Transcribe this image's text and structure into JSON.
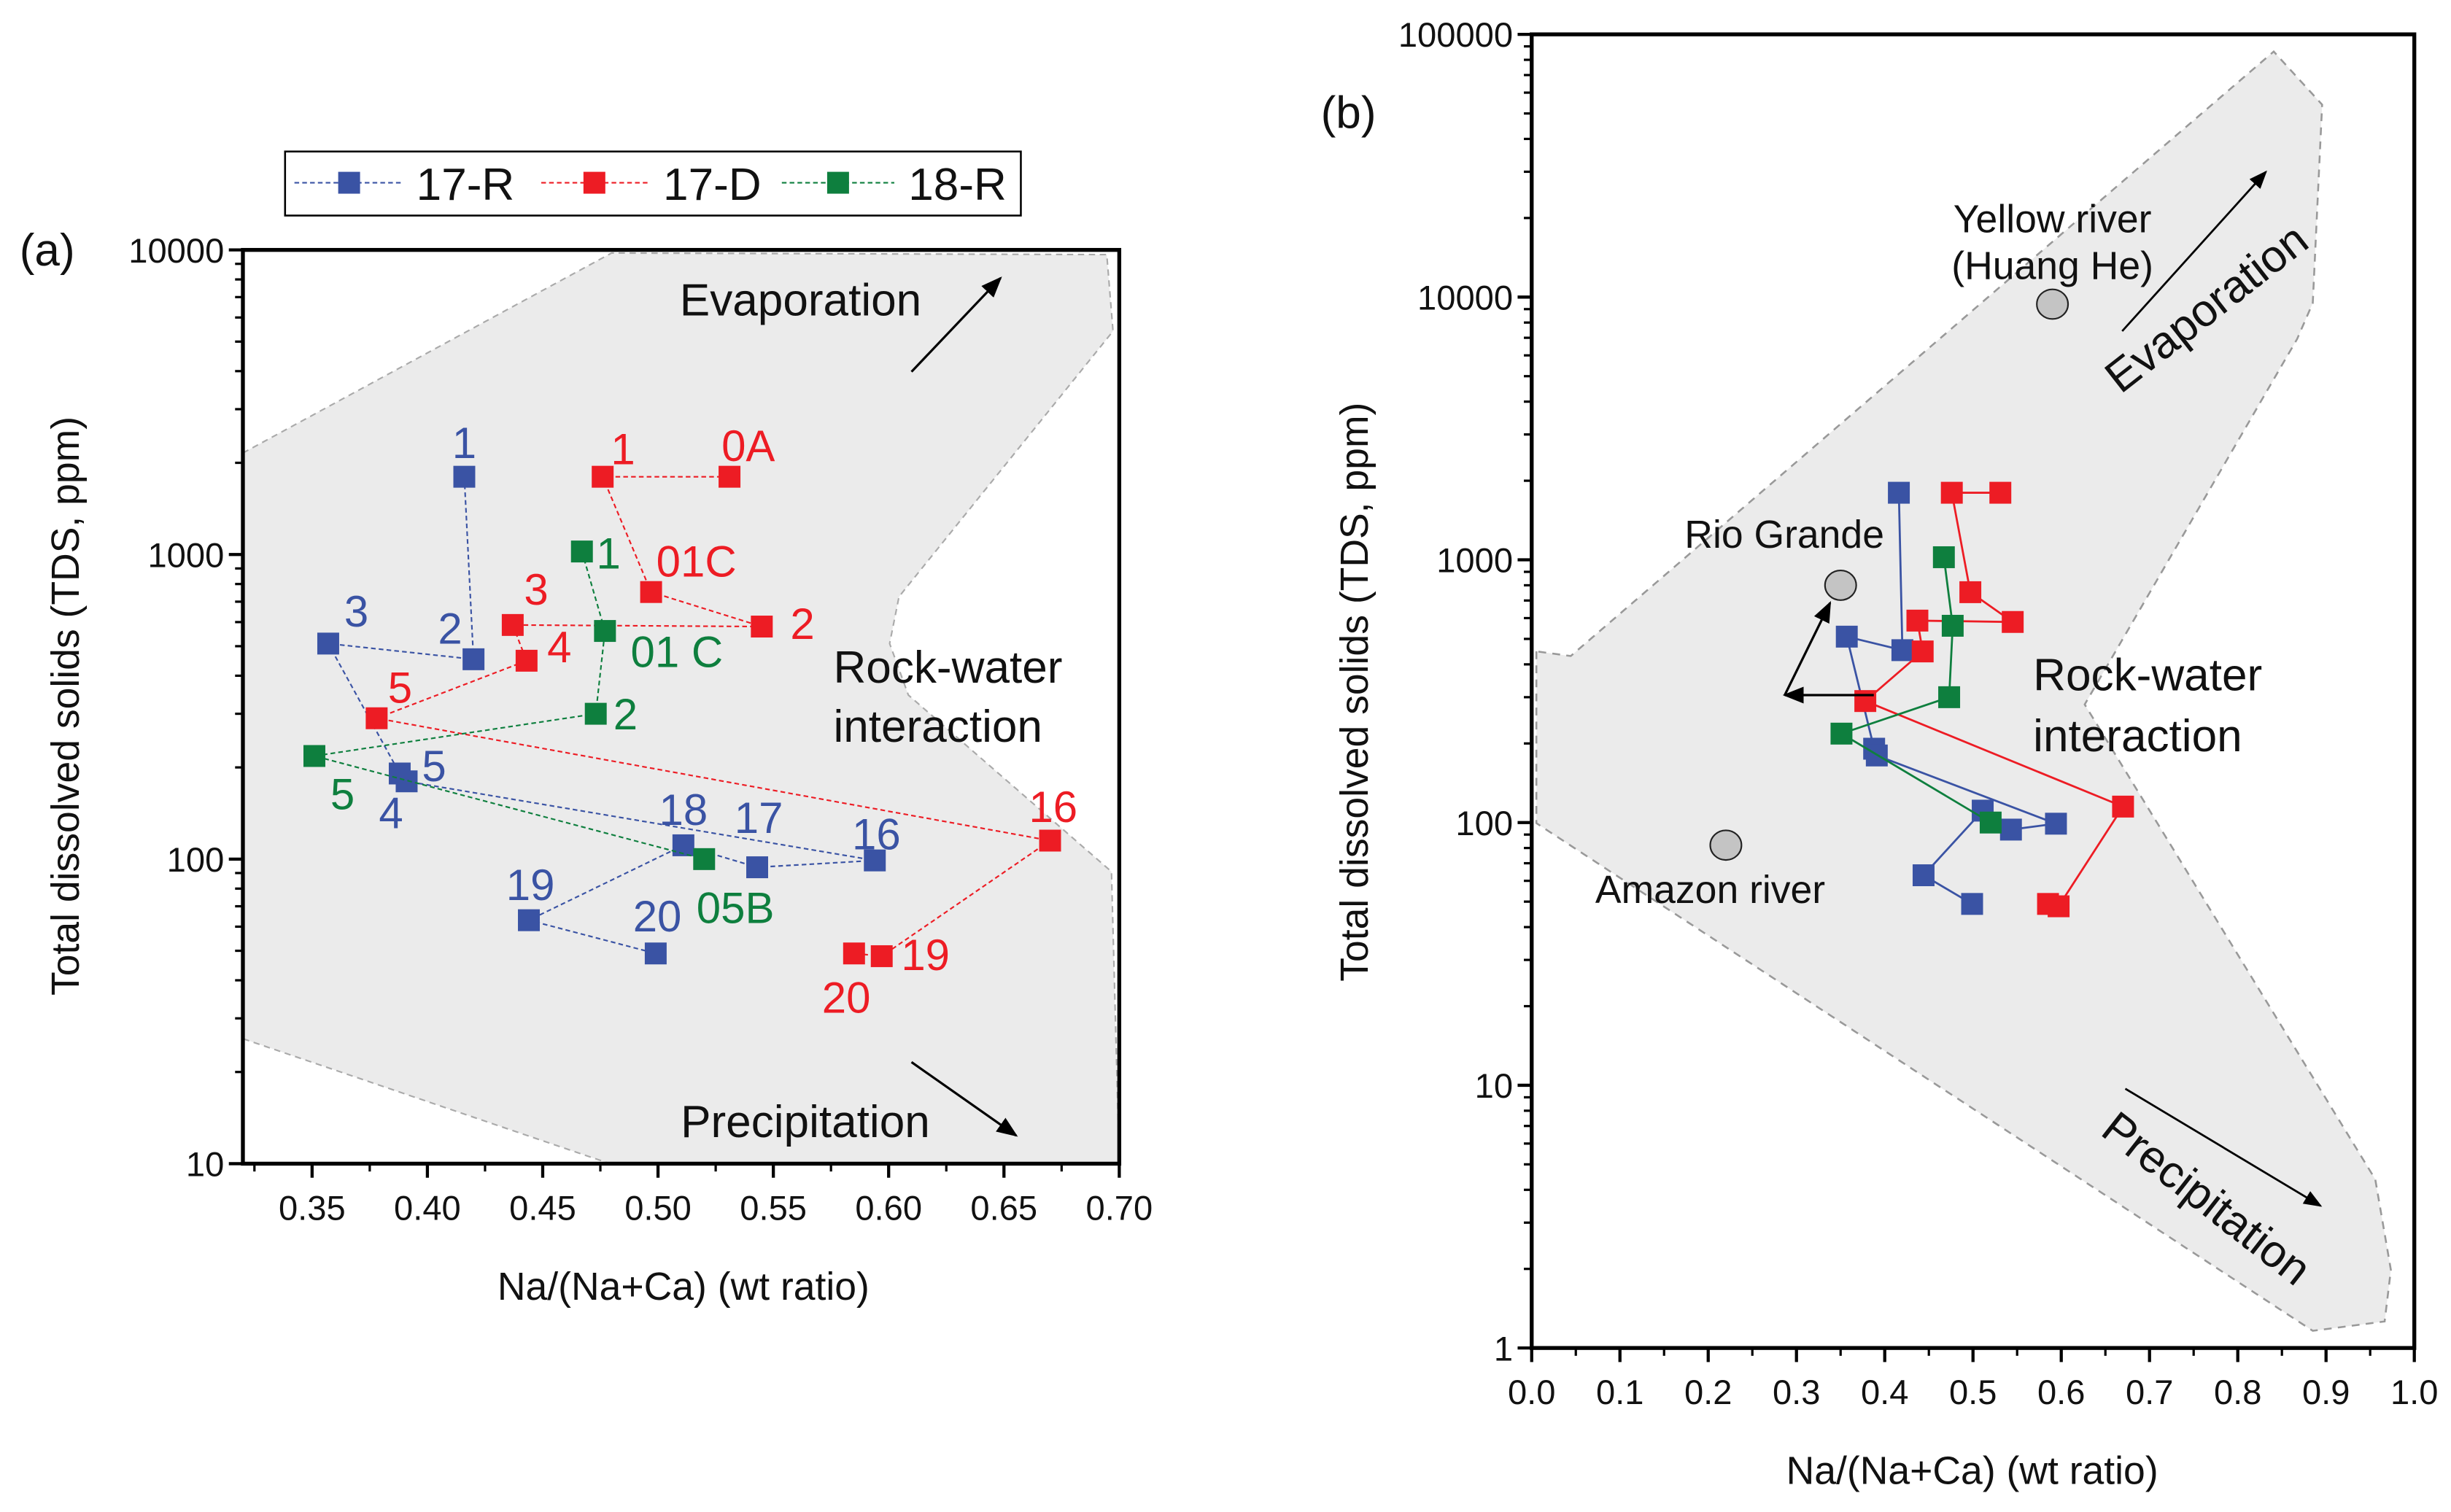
{
  "panels": {
    "a": "(a)",
    "b": "(b)"
  },
  "legend": [
    {
      "name": "17-R",
      "color": "#3a53a4"
    },
    {
      "name": "17-D",
      "color": "#ed1c24"
    },
    {
      "name": "18-R",
      "color": "#0e7f3e"
    }
  ],
  "chart_data": [
    {
      "type": "scatter",
      "panel": "(a)",
      "xlabel": "Na/(Na+Ca) (wt ratio)",
      "ylabel": "Total dissolved solids (TDS, ppm)",
      "xlim": [
        0.32,
        0.7
      ],
      "ylim": [
        10,
        10000
      ],
      "yscale": "log",
      "xticks": [
        "0.35",
        "0.40",
        "0.45",
        "0.50",
        "0.55",
        "0.60",
        "0.65",
        "0.70"
      ],
      "yticks": [
        "10",
        "100",
        "1000",
        "10000"
      ],
      "line_style": "dashed",
      "legend_position": "top",
      "annotations": {
        "evaporation": "Evaporation",
        "rock1": "Rock-water",
        "rock2": "interaction",
        "precipitation": "Precipitation"
      },
      "series": [
        {
          "name": "17-R",
          "color": "#3a53a4",
          "points": [
            {
              "x": 0.416,
              "y": 1800,
              "label": "1"
            },
            {
              "x": 0.42,
              "y": 453,
              "label": "2"
            },
            {
              "x": 0.357,
              "y": 510,
              "label": "3"
            },
            {
              "x": 0.388,
              "y": 191,
              "label": "5"
            },
            {
              "x": 0.391,
              "y": 180,
              "label": "4"
            },
            {
              "x": 0.594,
              "y": 99,
              "label": "16"
            },
            {
              "x": 0.543,
              "y": 94,
              "label": "17"
            },
            {
              "x": 0.511,
              "y": 111,
              "label": "18"
            },
            {
              "x": 0.444,
              "y": 63,
              "label": "19"
            },
            {
              "x": 0.499,
              "y": 49,
              "label": "20"
            }
          ]
        },
        {
          "name": "17-D",
          "color": "#ed1c24",
          "points": [
            {
              "x": 0.531,
              "y": 1800,
              "label": "0A"
            },
            {
              "x": 0.476,
              "y": 1800,
              "label": "1"
            },
            {
              "x": 0.497,
              "y": 753,
              "label": "01C"
            },
            {
              "x": 0.545,
              "y": 580,
              "label": "2"
            },
            {
              "x": 0.437,
              "y": 587,
              "label": "3"
            },
            {
              "x": 0.443,
              "y": 448,
              "label": "4"
            },
            {
              "x": 0.378,
              "y": 290,
              "label": "5"
            },
            {
              "x": 0.67,
              "y": 115,
              "label": "16"
            },
            {
              "x": 0.597,
              "y": 48,
              "label": "19"
            },
            {
              "x": 0.585,
              "y": 49,
              "label": "20"
            }
          ]
        },
        {
          "name": "18-R",
          "color": "#0e7f3e",
          "points": [
            {
              "x": 0.467,
              "y": 1023,
              "label": "1"
            },
            {
              "x": 0.477,
              "y": 561,
              "label": "01 C"
            },
            {
              "x": 0.473,
              "y": 300,
              "label": "2"
            },
            {
              "x": 0.351,
              "y": 218,
              "label": "5"
            },
            {
              "x": 0.52,
              "y": 100,
              "label": "05B"
            }
          ]
        }
      ]
    },
    {
      "type": "scatter",
      "panel": "(b)",
      "xlabel": "Na/(Na+Ca) (wt ratio)",
      "ylabel": "Total dissolved solids (TDS, ppm)",
      "xlim": [
        0.0,
        1.0
      ],
      "ylim": [
        1,
        100000
      ],
      "yscale": "log",
      "xticks": [
        "0.0",
        "0.1",
        "0.2",
        "0.3",
        "0.4",
        "0.5",
        "0.6",
        "0.7",
        "0.8",
        "0.9",
        "1.0"
      ],
      "yticks": [
        "1",
        "10",
        "100",
        "1000",
        "10000",
        "100000"
      ],
      "line_style": "solid",
      "annotations": {
        "evaporation": "Evaporation",
        "rock1": "Rock-water",
        "rock2": "interaction",
        "precipitation": "Precipitation"
      },
      "reference_points": [
        {
          "x": 0.59,
          "y": 9400,
          "label1": "Yellow river",
          "label2": "(Huang He)"
        },
        {
          "x": 0.35,
          "y": 800,
          "label1": "Rio Grande"
        },
        {
          "x": 0.22,
          "y": 82,
          "label1": "Amazon river"
        }
      ],
      "series": [
        {
          "color": "#3a53a4",
          "points": [
            {
              "x": 0.416,
              "y": 1800
            },
            {
              "x": 0.42,
              "y": 453
            },
            {
              "x": 0.357,
              "y": 510
            },
            {
              "x": 0.388,
              "y": 191
            },
            {
              "x": 0.391,
              "y": 180
            },
            {
              "x": 0.594,
              "y": 99
            },
            {
              "x": 0.543,
              "y": 94
            },
            {
              "x": 0.511,
              "y": 111
            },
            {
              "x": 0.444,
              "y": 63
            },
            {
              "x": 0.499,
              "y": 49
            }
          ]
        },
        {
          "color": "#ed1c24",
          "points": [
            {
              "x": 0.531,
              "y": 1800
            },
            {
              "x": 0.476,
              "y": 1800
            },
            {
              "x": 0.497,
              "y": 753
            },
            {
              "x": 0.545,
              "y": 580
            },
            {
              "x": 0.437,
              "y": 587
            },
            {
              "x": 0.443,
              "y": 448
            },
            {
              "x": 0.378,
              "y": 290
            },
            {
              "x": 0.67,
              "y": 115
            },
            {
              "x": 0.597,
              "y": 48
            },
            {
              "x": 0.585,
              "y": 49
            }
          ]
        },
        {
          "color": "#0e7f3e",
          "points": [
            {
              "x": 0.467,
              "y": 1023
            },
            {
              "x": 0.477,
              "y": 561
            },
            {
              "x": 0.473,
              "y": 300
            },
            {
              "x": 0.351,
              "y": 218
            },
            {
              "x": 0.52,
              "y": 100
            }
          ]
        }
      ]
    }
  ]
}
